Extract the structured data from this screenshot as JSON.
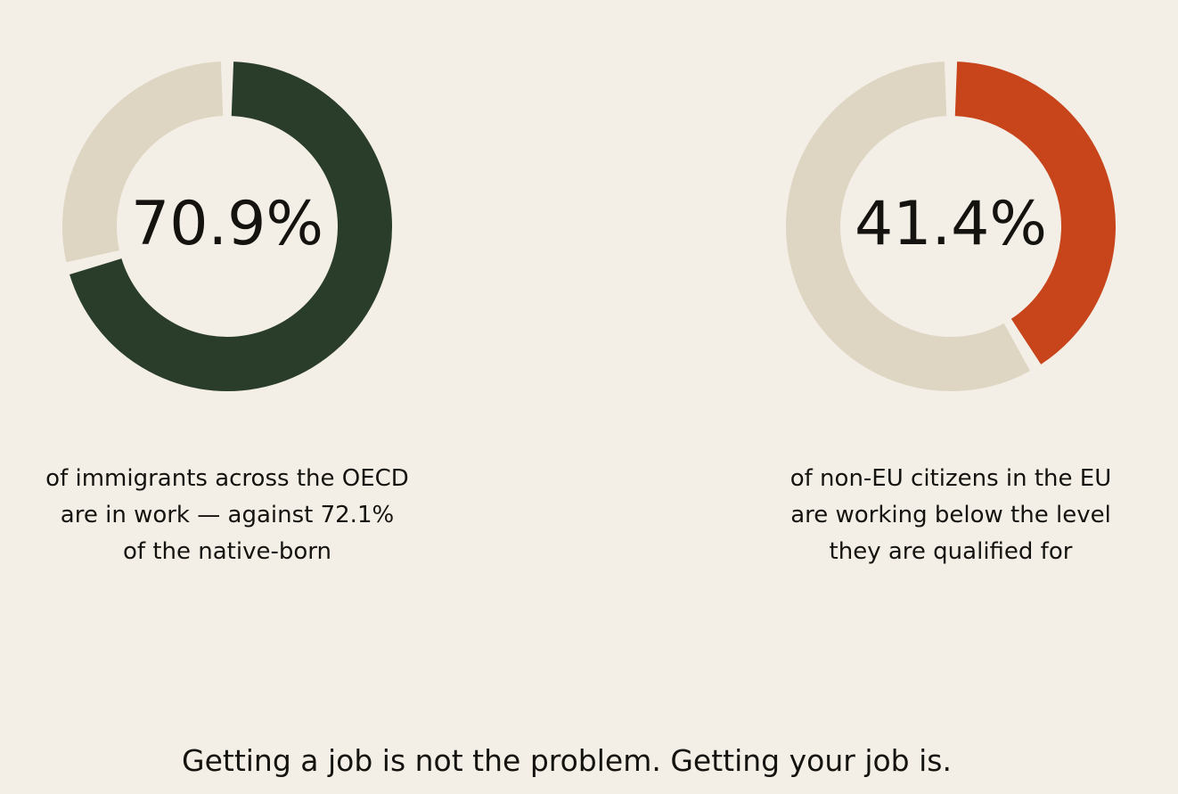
{
  "colors": {
    "background": "#f3efe6",
    "track": "#ded5c3",
    "green": "#2a3d2a",
    "orange": "#c8441b",
    "text": "#15130f"
  },
  "chart_data": [
    {
      "type": "pie",
      "subtype": "donut",
      "value": 70.9,
      "value_label": "70.9%",
      "fill_color": "#2a3d2a",
      "caption_lines": [
        "of immigrants across the OECD",
        "are in work — against 72.1%",
        "of the native-born"
      ]
    },
    {
      "type": "pie",
      "subtype": "donut",
      "value": 41.4,
      "value_label": "41.4%",
      "fill_color": "#c8441b",
      "caption_lines": [
        "of non-EU citizens in the EU",
        "are working below the level",
        "they are qualified for"
      ]
    }
  ],
  "footer": "Getting a job is not the problem. Getting your job is."
}
